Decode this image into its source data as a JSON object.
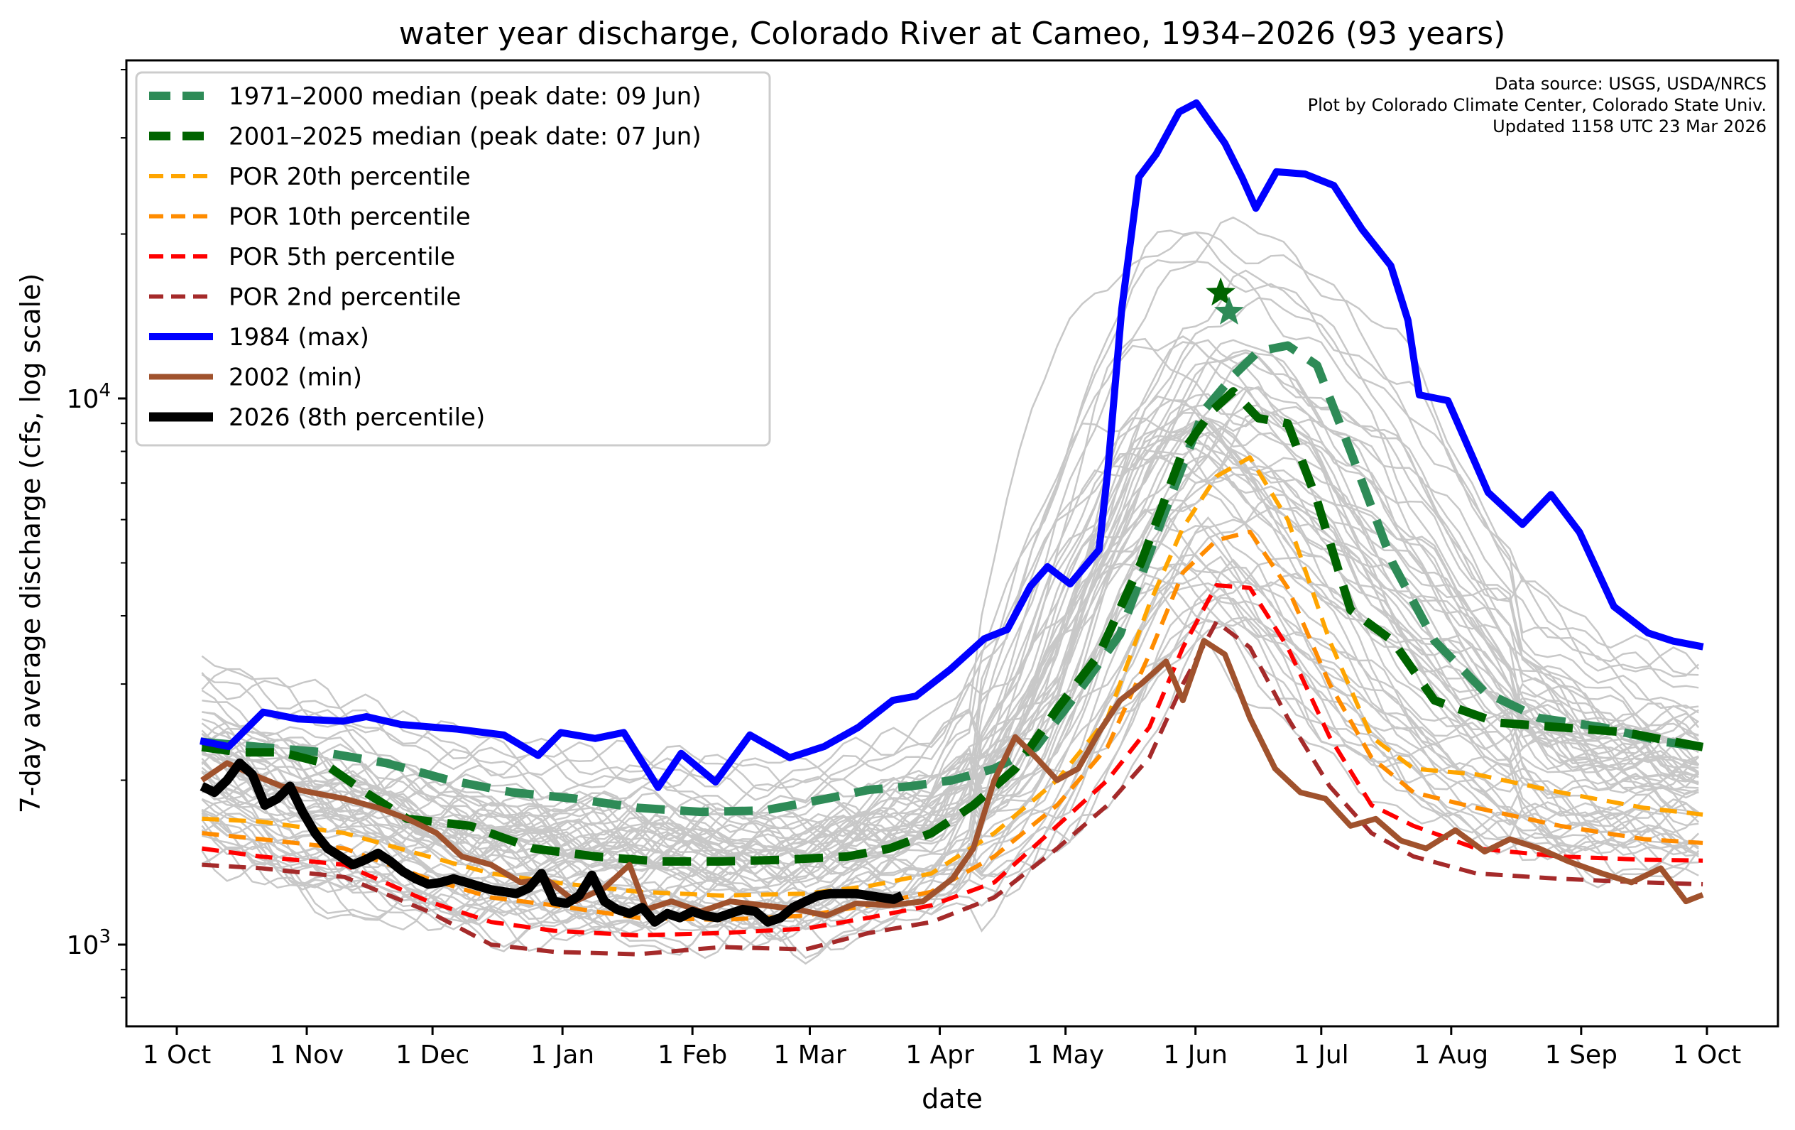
{
  "chart_data": {
    "type": "line",
    "title": "water year discharge, Colorado River at Cameo, 1934–2026 (93 years)",
    "xlabel": "date",
    "ylabel": "7-day average discharge (cfs, log scale)",
    "yscale": "log",
    "ylim": [
      708,
      41600
    ],
    "xlim_days_from_oct1": [
      -12,
      382
    ],
    "x_unit": "days since 1 Oct",
    "x_ticks": [
      {
        "label": "1 Oct",
        "day": 0
      },
      {
        "label": "1 Nov",
        "day": 31
      },
      {
        "label": "1 Dec",
        "day": 61
      },
      {
        "label": "1 Jan",
        "day": 92
      },
      {
        "label": "1 Feb",
        "day": 123
      },
      {
        "label": "1 Mar",
        "day": 151
      },
      {
        "label": "1 Apr",
        "day": 182
      },
      {
        "label": "1 May",
        "day": 212
      },
      {
        "label": "1 Jun",
        "day": 243
      },
      {
        "label": "1 Jul",
        "day": 273
      },
      {
        "label": "1 Aug",
        "day": 304
      },
      {
        "label": "1 Sep",
        "day": 335
      },
      {
        "label": "1 Oct",
        "day": 365
      }
    ],
    "y_major_ticks": [
      {
        "value": 1000,
        "base": "10",
        "exp": "3"
      },
      {
        "value": 10000,
        "base": "10",
        "exp": "4"
      }
    ],
    "y_minor_ticks": [
      800,
      900,
      2000,
      3000,
      4000,
      5000,
      6000,
      7000,
      8000,
      9000,
      20000,
      30000,
      40000
    ],
    "annotations": [
      "Data source: USGS, USDA/NRCS",
      "Plot by Colorado Climate Center, Colorado State Univ.",
      "Updated 1158 UTC 23 Mar 2026"
    ],
    "legend_position": "upper-left",
    "background_years_note": "93 individual water years drawn as light gray lines",
    "background_envelope": {
      "color": "#c8c8c8",
      "days": [
        6,
        30,
        60,
        90,
        120,
        150,
        180,
        200,
        215,
        230,
        243,
        255,
        270,
        285,
        300,
        320,
        340,
        364
      ],
      "upper": [
        3900,
        3600,
        3000,
        2700,
        2600,
        2500,
        3000,
        5000,
        15000,
        28000,
        32000,
        31000,
        28000,
        22000,
        12000,
        6500,
        4500,
        4000
      ],
      "lower": [
        1250,
        1000,
        900,
        880,
        860,
        850,
        950,
        1100,
        1400,
        2000,
        2600,
        2200,
        1500,
        1200,
        1150,
        1100,
        1100,
        1100
      ]
    },
    "series": [
      {
        "name": "1971–2000 median (peak date: 09 Jun)",
        "color": "#2e8b57",
        "style": "dashed-thick",
        "width": 12,
        "dash": "40,22",
        "days": [
          6,
          20,
          35,
          50,
          65,
          80,
          95,
          110,
          125,
          140,
          155,
          165,
          175,
          185,
          195,
          205,
          215,
          225,
          235,
          245,
          252,
          258,
          265,
          272,
          280,
          290,
          300,
          312,
          325,
          340,
          355,
          364
        ],
        "values": [
          2350,
          2300,
          2250,
          2150,
          2000,
          1900,
          1850,
          1780,
          1750,
          1760,
          1850,
          1920,
          1950,
          2000,
          2100,
          2300,
          2900,
          3700,
          6000,
          9500,
          11000,
          12200,
          12500,
          11500,
          8000,
          5000,
          3600,
          2900,
          2600,
          2500,
          2350,
          2300
        ]
      },
      {
        "name": "2001–2025 median (peak date: 07 Jun)",
        "color": "#006400",
        "style": "dashed-thick",
        "width": 12,
        "dash": "40,22",
        "days": [
          6,
          15,
          25,
          35,
          45,
          55,
          70,
          85,
          100,
          115,
          130,
          145,
          160,
          170,
          180,
          190,
          200,
          210,
          220,
          230,
          240,
          247,
          252,
          258,
          265,
          272,
          280,
          290,
          300,
          315,
          330,
          345,
          364
        ],
        "values": [
          2300,
          2250,
          2250,
          2150,
          1900,
          1700,
          1650,
          1500,
          1450,
          1420,
          1420,
          1430,
          1450,
          1500,
          1600,
          1800,
          2100,
          2700,
          3400,
          5000,
          8000,
          9500,
          10300,
          9200,
          9000,
          6500,
          4100,
          3600,
          2800,
          2550,
          2500,
          2450,
          2300
        ]
      },
      {
        "name": "POR 20th percentile",
        "color": "#ffa500",
        "style": "dashed",
        "width": 6,
        "dash": "24,14",
        "days": [
          6,
          20,
          40,
          60,
          75,
          90,
          110,
          130,
          150,
          165,
          180,
          195,
          210,
          222,
          232,
          240,
          248,
          256,
          265,
          275,
          285,
          295,
          310,
          330,
          350,
          364
        ],
        "values": [
          1700,
          1680,
          1600,
          1450,
          1350,
          1300,
          1250,
          1230,
          1240,
          1280,
          1350,
          1600,
          2000,
          2600,
          4200,
          5800,
          7200,
          7800,
          6000,
          3600,
          2400,
          2100,
          2050,
          1900,
          1780,
          1730
        ]
      },
      {
        "name": "POR 10th percentile",
        "color": "#ff8c00",
        "style": "dashed",
        "width": 6,
        "dash": "24,14",
        "days": [
          6,
          20,
          40,
          60,
          75,
          90,
          110,
          130,
          150,
          165,
          180,
          195,
          210,
          222,
          232,
          240,
          248,
          256,
          265,
          275,
          285,
          295,
          310,
          330,
          350,
          364
        ],
        "values": [
          1600,
          1560,
          1500,
          1320,
          1220,
          1180,
          1120,
          1110,
          1130,
          1180,
          1250,
          1450,
          1800,
          2300,
          3400,
          4800,
          5500,
          5700,
          4500,
          3000,
          2200,
          1900,
          1780,
          1650,
          1560,
          1535
        ]
      },
      {
        "name": "POR 5th percentile",
        "color": "#ff0000",
        "style": "dashed",
        "width": 6,
        "dash": "24,14",
        "days": [
          6,
          20,
          40,
          60,
          75,
          90,
          110,
          130,
          150,
          165,
          180,
          195,
          210,
          222,
          232,
          240,
          248,
          256,
          265,
          275,
          285,
          295,
          310,
          330,
          350,
          364
        ],
        "values": [
          1500,
          1450,
          1400,
          1200,
          1100,
          1060,
          1040,
          1050,
          1070,
          1120,
          1180,
          1300,
          1650,
          2000,
          2500,
          3500,
          4550,
          4500,
          3500,
          2400,
          1800,
          1650,
          1500,
          1450,
          1430,
          1425
        ]
      },
      {
        "name": "POR 2nd percentile",
        "color": "#a52a2a",
        "style": "dashed",
        "width": 6,
        "dash": "24,14",
        "days": [
          6,
          20,
          40,
          60,
          75,
          90,
          110,
          130,
          150,
          165,
          180,
          195,
          210,
          222,
          232,
          240,
          248,
          256,
          265,
          275,
          285,
          295,
          310,
          330,
          350,
          364
        ],
        "values": [
          1400,
          1380,
          1330,
          1150,
          1000,
          970,
          960,
          990,
          980,
          1050,
          1100,
          1220,
          1500,
          1800,
          2200,
          3000,
          3900,
          3500,
          2600,
          1950,
          1600,
          1450,
          1350,
          1320,
          1300,
          1290
        ]
      },
      {
        "name": "1984 (max)",
        "color": "#0000ff",
        "style": "solid",
        "width": 10,
        "dash": "",
        "days": [
          5.6,
          12.4,
          20.6,
          28.8,
          39.7,
          45.2,
          53.4,
          67.0,
          78.0,
          86.2,
          91.6,
          99.8,
          106.6,
          114.8,
          120.3,
          128.5,
          136.7,
          146.2,
          154.4,
          162.6,
          170.8,
          176.3,
          184.4,
          192.6,
          198.1,
          203.6,
          207.7,
          213.1,
          220.0,
          222.1,
          225.4,
          229.5,
          233.6,
          239.1,
          243.2,
          250.0,
          254.1,
          257.4,
          262.3,
          269.1,
          276.0,
          282.7,
          289.6,
          293.7,
          296.4,
          303.2,
          312.8,
          321.0,
          327.8,
          334.6,
          342.8,
          351.0,
          357.0,
          364.1
        ],
        "values": [
          2360,
          2305,
          2665,
          2590,
          2565,
          2615,
          2530,
          2480,
          2420,
          2220,
          2445,
          2385,
          2445,
          1940,
          2240,
          1985,
          2420,
          2200,
          2305,
          2500,
          2800,
          2850,
          3185,
          3630,
          3775,
          4530,
          4920,
          4575,
          5285,
          7410,
          14580,
          25420,
          27990,
          33450,
          34760,
          29330,
          25400,
          22300,
          26000,
          25760,
          24540,
          20420,
          17500,
          13890,
          10150,
          9910,
          6730,
          5880,
          6670,
          5690,
          4160,
          3720,
          3595,
          3510
        ]
      },
      {
        "name": "2002 (min)",
        "color": "#a0522d",
        "style": "solid",
        "width": 8,
        "dash": "",
        "days": [
          6,
          12,
          18,
          25,
          32,
          40,
          48,
          55,
          62,
          68,
          75,
          82,
          88,
          95,
          102,
          108,
          112,
          118,
          125,
          132,
          140,
          148,
          155,
          162,
          170,
          178,
          185,
          190,
          195,
          200,
          205,
          210,
          215,
          220,
          225,
          230,
          236,
          240,
          245,
          250,
          256,
          262,
          268,
          274,
          280,
          286,
          292,
          298,
          305,
          312,
          318,
          325,
          332,
          340,
          347,
          354,
          360,
          364
        ],
        "values": [
          2000,
          2150,
          2050,
          1950,
          1900,
          1850,
          1780,
          1700,
          1600,
          1450,
          1400,
          1300,
          1320,
          1200,
          1270,
          1400,
          1160,
          1200,
          1150,
          1200,
          1180,
          1160,
          1130,
          1190,
          1180,
          1200,
          1320,
          1500,
          2000,
          2400,
          2200,
          2000,
          2100,
          2450,
          2800,
          3000,
          3300,
          2800,
          3600,
          3400,
          2600,
          2100,
          1900,
          1850,
          1650,
          1700,
          1550,
          1500,
          1620,
          1480,
          1560,
          1500,
          1420,
          1350,
          1300,
          1380,
          1200,
          1234
        ]
      },
      {
        "name": "2026 (8th percentile)",
        "color": "#000000",
        "style": "solid",
        "width": 13,
        "dash": "",
        "days": [
          6,
          9,
          12,
          15,
          18,
          21,
          24,
          27,
          30,
          33,
          36,
          39,
          42,
          45,
          48,
          51,
          54,
          57,
          60,
          63,
          66,
          69,
          72,
          75,
          78,
          81,
          84,
          87,
          90,
          93,
          96,
          99,
          102,
          105,
          108,
          111,
          114,
          117,
          120,
          123,
          126,
          129,
          132,
          135,
          138,
          141,
          144,
          147,
          150,
          153,
          156,
          159,
          162,
          165,
          168,
          171,
          173
        ],
        "values": [
          1950,
          1900,
          2000,
          2150,
          2050,
          1800,
          1850,
          1950,
          1750,
          1600,
          1500,
          1450,
          1400,
          1430,
          1470,
          1420,
          1360,
          1320,
          1290,
          1300,
          1320,
          1300,
          1280,
          1260,
          1250,
          1240,
          1270,
          1350,
          1200,
          1190,
          1230,
          1340,
          1200,
          1160,
          1140,
          1170,
          1100,
          1140,
          1120,
          1150,
          1130,
          1120,
          1140,
          1160,
          1150,
          1100,
          1120,
          1170,
          1200,
          1230,
          1240,
          1240,
          1240,
          1230,
          1220,
          1210,
          1230
        ]
      }
    ],
    "peak_markers": [
      {
        "name": "2001–2025 median peak",
        "day": 249,
        "value": 15600,
        "color": "#006400",
        "marker": "star"
      },
      {
        "name": "1971–2000 median peak",
        "day": 251,
        "value": 14400,
        "color": "#2e8b57",
        "marker": "star"
      }
    ]
  }
}
